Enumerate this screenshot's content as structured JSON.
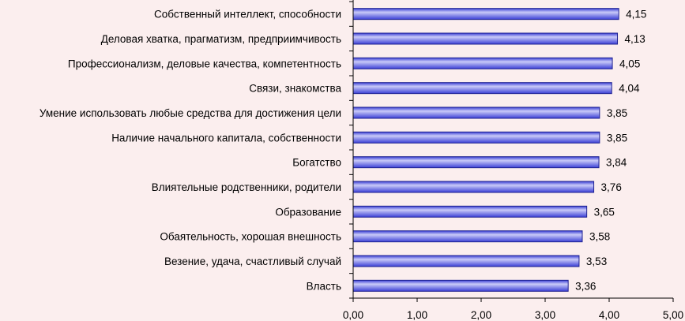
{
  "chart_data": {
    "type": "bar",
    "orientation": "horizontal",
    "title": "",
    "xlabel": "",
    "ylabel": "",
    "categories": [
      "Собственный интеллект, способности",
      "Деловая хватка, прагматизм, предприимчивость",
      "Профессионализм, деловые качества, компетентность",
      "Связи, знакомства",
      "Умение использовать любые средства для достижения цели",
      "Наличие начального капитала, собственности",
      "Богатство",
      "Влиятельные родственники, родители",
      "Образование",
      "Обаятельность, хорошая внешность",
      "Везение, удача, счастливый случай",
      "Власть"
    ],
    "values": [
      4.15,
      4.13,
      4.05,
      4.04,
      3.85,
      3.85,
      3.84,
      3.76,
      3.65,
      3.58,
      3.53,
      3.36
    ],
    "value_labels": [
      "4,15",
      "4,13",
      "4,05",
      "4,04",
      "3,85",
      "3,85",
      "3,84",
      "3,76",
      "3,65",
      "3,58",
      "3,53",
      "3,36"
    ],
    "xlim": [
      0,
      5
    ],
    "x_ticks": [
      0,
      1,
      2,
      3,
      4,
      5
    ],
    "x_tick_labels": [
      "0,00",
      "1,00",
      "2,00",
      "3,00",
      "4,00",
      "5,00"
    ],
    "grid": false,
    "legend": "none",
    "bar_color": "#3b3fd6",
    "bar_highlight_color": "#c9caf8",
    "bar_edge_color": "#1f2290",
    "background_color": "#fbeeee"
  }
}
